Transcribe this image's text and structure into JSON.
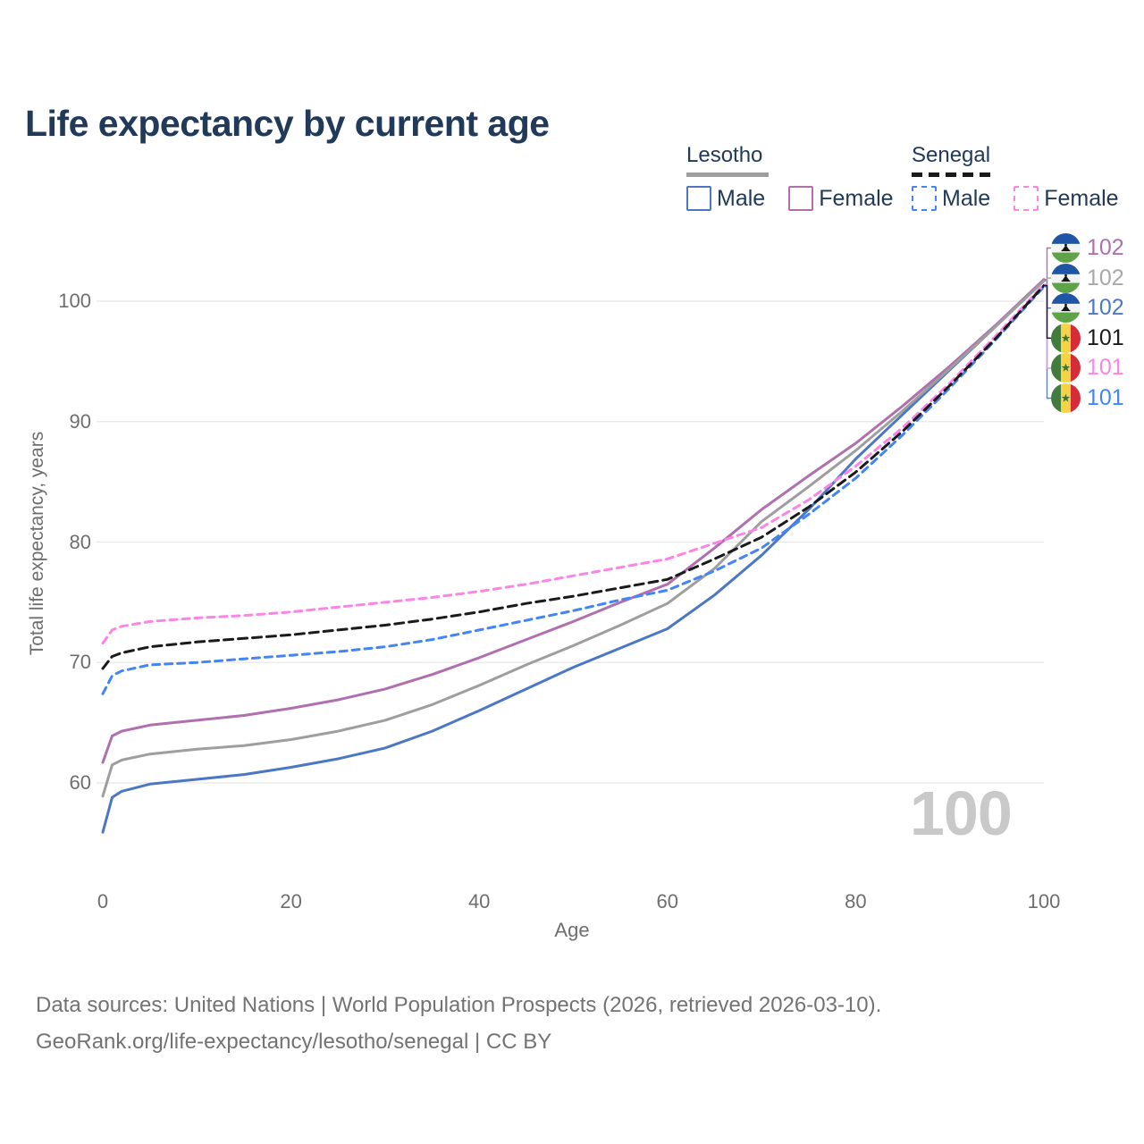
{
  "title": "Life expectancy by current age",
  "hover_age_label": "100",
  "legend": {
    "groups": [
      {
        "name": "Lesotho",
        "line_style": "solid",
        "underline_color": "#9e9e9e",
        "items": [
          {
            "label": "Male",
            "color": "#4b77c5"
          },
          {
            "label": "Female",
            "color": "#b06fae"
          }
        ]
      },
      {
        "name": "Senegal",
        "line_style": "dashed",
        "underline_color": "#1a1a1a",
        "items": [
          {
            "label": "Male",
            "color": "#4285f4"
          },
          {
            "label": "Female",
            "color": "#fb84e4"
          }
        ]
      }
    ]
  },
  "chart_data": {
    "type": "line",
    "title": "Life expectancy by current age",
    "xlabel": "Age",
    "ylabel": "Total life expectancy, years",
    "xlim": [
      0,
      100
    ],
    "ylim": [
      55,
      104
    ],
    "x_ticks": [
      0,
      20,
      40,
      60,
      80,
      100
    ],
    "y_ticks": [
      60,
      70,
      80,
      90,
      100
    ],
    "grid": "horizontal",
    "legend_position": "top-right",
    "x": [
      0,
      1,
      2,
      5,
      10,
      15,
      20,
      25,
      30,
      35,
      40,
      45,
      50,
      55,
      60,
      65,
      70,
      75,
      80,
      85,
      90,
      95,
      100
    ],
    "series": [
      {
        "name": "Lesotho Male",
        "country": "Lesotho",
        "sex": "male",
        "line": "solid",
        "color": "#4b77c5",
        "values": [
          55.9,
          58.8,
          59.3,
          59.9,
          60.3,
          60.7,
          61.3,
          62.0,
          62.9,
          64.3,
          66.0,
          67.8,
          69.6,
          71.2,
          72.8,
          75.6,
          78.9,
          82.7,
          86.9,
          90.6,
          94.3,
          98.0,
          101.7
        ],
        "end_label": "102",
        "end_label_color": "#4b77c5",
        "end_label_row": 2
      },
      {
        "name": "Lesotho Female",
        "country": "Lesotho",
        "sex": "female",
        "line": "solid",
        "color": "#b06fae",
        "values": [
          61.7,
          63.9,
          64.3,
          64.8,
          65.2,
          65.6,
          66.2,
          66.9,
          67.8,
          69.0,
          70.4,
          71.9,
          73.4,
          75.0,
          76.5,
          79.5,
          82.7,
          85.5,
          88.2,
          91.3,
          94.6,
          98.1,
          101.8
        ],
        "end_label": "102",
        "end_label_color": "#b06fae",
        "end_label_row": 0
      },
      {
        "name": "Lesotho (both sexes)",
        "country": "Lesotho",
        "sex": "both",
        "line": "solid",
        "color": "#9e9e9e",
        "values": [
          58.9,
          61.5,
          61.9,
          62.4,
          62.8,
          63.1,
          63.6,
          64.3,
          65.2,
          66.5,
          68.1,
          69.8,
          71.4,
          73.1,
          74.9,
          77.8,
          81.7,
          84.6,
          87.6,
          90.9,
          94.4,
          98.0,
          101.7
        ],
        "end_label": "102",
        "end_label_color": "#a8a8a8",
        "end_label_row": 1
      },
      {
        "name": "Senegal Male",
        "country": "Senegal",
        "sex": "male",
        "line": "dashed",
        "color": "#4285f4",
        "values": [
          67.4,
          68.9,
          69.3,
          69.8,
          70.0,
          70.3,
          70.6,
          70.9,
          71.3,
          71.9,
          72.7,
          73.5,
          74.3,
          75.2,
          76.0,
          77.6,
          79.5,
          82.3,
          85.3,
          88.9,
          92.8,
          96.9,
          101.2
        ],
        "end_label": "101",
        "end_label_color": "#4285f4",
        "end_label_row": 5
      },
      {
        "name": "Senegal Female",
        "country": "Senegal",
        "sex": "female",
        "line": "dashed",
        "color": "#fb84e4",
        "values": [
          71.6,
          72.7,
          73.0,
          73.4,
          73.7,
          73.9,
          74.2,
          74.6,
          75.0,
          75.4,
          75.9,
          76.5,
          77.2,
          77.9,
          78.6,
          79.9,
          81.2,
          83.5,
          86.3,
          89.5,
          93.2,
          97.2,
          101.4
        ],
        "end_label": "101",
        "end_label_color": "#fb84e4",
        "end_label_row": 4
      },
      {
        "name": "Senegal (both sexes)",
        "country": "Senegal",
        "sex": "both",
        "line": "dashed",
        "color": "#1a1a1a",
        "values": [
          69.5,
          70.5,
          70.8,
          71.3,
          71.7,
          72.0,
          72.3,
          72.7,
          73.1,
          73.6,
          74.2,
          74.9,
          75.5,
          76.2,
          76.9,
          78.6,
          80.4,
          82.9,
          85.8,
          89.2,
          93.0,
          97.0,
          101.3
        ],
        "end_label": "101",
        "end_label_color": "#1a1a1a",
        "end_label_row": 3
      }
    ]
  },
  "footer": {
    "line1": "Data sources: United Nations | World Population Prospects (2026, retrieved 2026-03-10).",
    "line2": "GeoRank.org/life-expectancy/lesotho/senegal | CC BY"
  }
}
